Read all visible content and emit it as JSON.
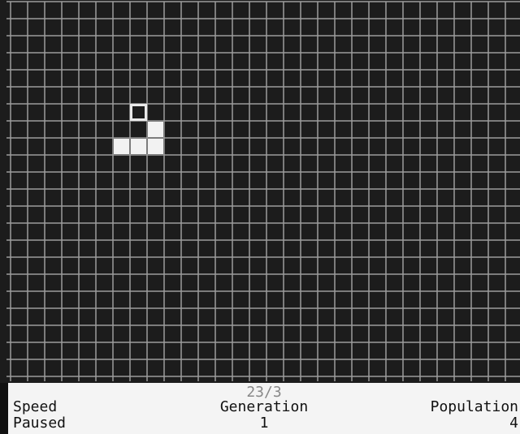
{
  "rule": "23/3",
  "status": {
    "speed_label": "Speed",
    "speed_value": "Paused",
    "generation_label": "Generation",
    "generation_value": 1,
    "population_label": "Population",
    "population_value": 4
  }
}
